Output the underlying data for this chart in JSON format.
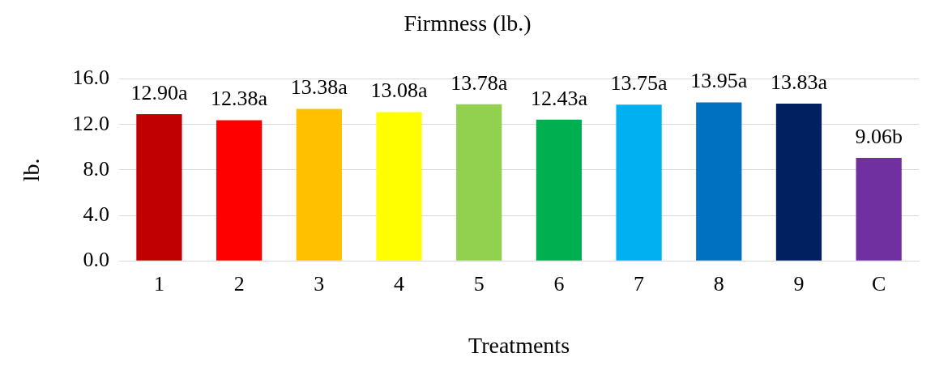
{
  "chart_data": {
    "type": "bar",
    "title": "Firmness (lb.)",
    "xlabel": "Treatments",
    "ylabel": "lb.",
    "categories": [
      "1",
      "2",
      "3",
      "4",
      "5",
      "6",
      "7",
      "8",
      "9",
      "C"
    ],
    "values": [
      12.9,
      12.38,
      13.38,
      13.08,
      13.78,
      12.43,
      13.75,
      13.95,
      13.83,
      9.06
    ],
    "colors": [
      "#c00000",
      "#ff0000",
      "#ffc000",
      "#ffff00",
      "#92d050",
      "#00b050",
      "#00b0f0",
      "#0070c0",
      "#002060",
      "#7030a0"
    ],
    "value_labels": [
      "12.90a",
      "12.38a",
      "13.38a",
      "13.08a",
      "13.78a",
      "12.43a",
      "13.75a",
      "13.95a",
      "13.83a",
      "9.06b"
    ],
    "ylim": [
      0,
      16
    ],
    "yticks": [
      {
        "value": 0,
        "label": "0.0"
      },
      {
        "value": 4,
        "label": "4.0"
      },
      {
        "value": 8,
        "label": "8.0"
      },
      {
        "value": 12,
        "label": "12.0"
      },
      {
        "value": 16,
        "label": "16.0"
      }
    ],
    "grid": "y",
    "legend": false
  }
}
